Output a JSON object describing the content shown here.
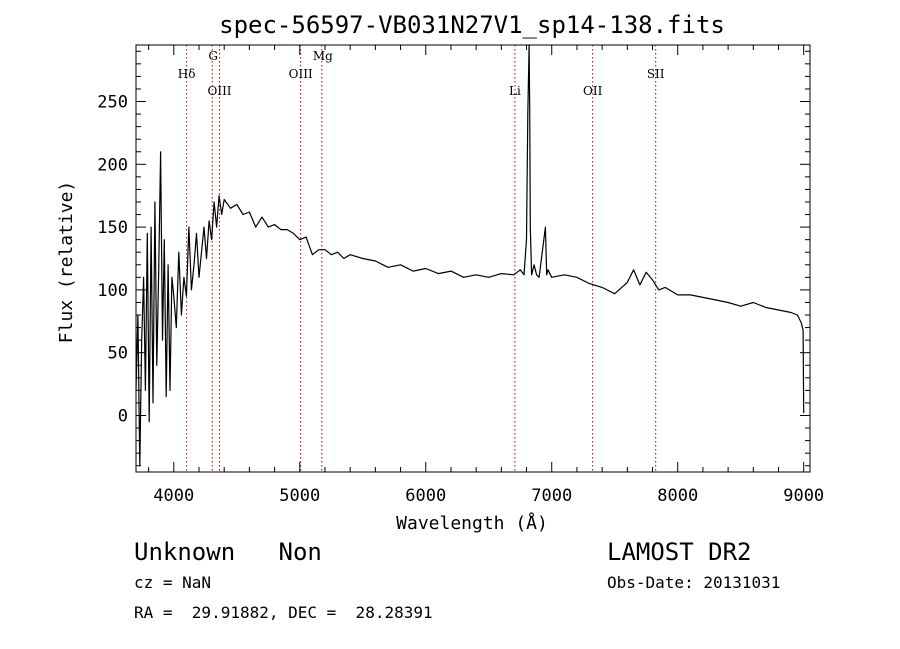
{
  "chart_data": {
    "type": "line",
    "title": "spec-56597-VB031N27V1_sp14-138.fits",
    "xlabel": "Wavelength (Å)",
    "ylabel": "Flux (relative)",
    "xlim": [
      3700,
      9050
    ],
    "ylim": [
      -45,
      295
    ],
    "x_ticks": [
      4000,
      5000,
      6000,
      7000,
      8000,
      9000
    ],
    "y_ticks": [
      0,
      50,
      100,
      150,
      200,
      250
    ],
    "grid": false,
    "line_color": "#000000",
    "marker_color": "#b00000",
    "line_markers": [
      {
        "label": "Hδ",
        "x": 4102,
        "row": 2
      },
      {
        "label": "G",
        "x": 4305,
        "row": 0
      },
      {
        "label": "OIII",
        "x": 4363,
        "row": 3
      },
      {
        "label": "OIII",
        "x": 5007,
        "row": 2
      },
      {
        "label": "Mg",
        "x": 5175,
        "row": 0
      },
      {
        "label": "Li",
        "x": 6708,
        "row": 3
      },
      {
        "label": "OII",
        "x": 7325,
        "row": 3
      },
      {
        "label": "SII",
        "x": 7825,
        "row": 2
      }
    ],
    "spectrum": {
      "x": [
        3700,
        3715,
        3730,
        3745,
        3760,
        3775,
        3790,
        3805,
        3820,
        3835,
        3850,
        3865,
        3880,
        3895,
        3910,
        3925,
        3940,
        3955,
        3970,
        3985,
        4000,
        4020,
        4040,
        4060,
        4080,
        4100,
        4120,
        4140,
        4160,
        4180,
        4200,
        4220,
        4240,
        4260,
        4280,
        4300,
        4320,
        4340,
        4360,
        4380,
        4400,
        4450,
        4500,
        4550,
        4600,
        4650,
        4700,
        4750,
        4800,
        4850,
        4900,
        4950,
        5000,
        5050,
        5100,
        5150,
        5200,
        5250,
        5300,
        5350,
        5400,
        5500,
        5600,
        5700,
        5800,
        5900,
        6000,
        6100,
        6200,
        6300,
        6400,
        6500,
        6600,
        6700,
        6750,
        6780,
        6800,
        6810,
        6820,
        6825,
        6830,
        6840,
        6860,
        6880,
        6900,
        6950,
        6960,
        6970,
        7000,
        7100,
        7200,
        7300,
        7400,
        7500,
        7600,
        7650,
        7700,
        7750,
        7800,
        7850,
        7900,
        8000,
        8100,
        8200,
        8300,
        8400,
        8500,
        8600,
        8700,
        8800,
        8900,
        8950,
        8980,
        8995,
        9000
      ],
      "y": [
        20,
        80,
        -40,
        60,
        110,
        20,
        145,
        -5,
        150,
        10,
        170,
        40,
        115,
        210,
        60,
        140,
        15,
        120,
        20,
        110,
        95,
        70,
        130,
        80,
        110,
        95,
        150,
        100,
        120,
        145,
        110,
        130,
        150,
        125,
        155,
        140,
        170,
        150,
        175,
        160,
        172,
        165,
        168,
        160,
        162,
        150,
        158,
        150,
        152,
        148,
        148,
        145,
        140,
        142,
        128,
        132,
        132,
        128,
        130,
        125,
        128,
        125,
        123,
        118,
        120,
        115,
        117,
        113,
        115,
        110,
        112,
        110,
        113,
        112,
        116,
        112,
        140,
        240,
        300,
        245,
        150,
        112,
        120,
        112,
        110,
        150,
        112,
        116,
        110,
        112,
        110,
        105,
        102,
        97,
        106,
        116,
        104,
        114,
        108,
        100,
        102,
        96,
        96,
        94,
        92,
        90,
        87,
        90,
        86,
        84,
        82,
        80,
        74,
        68,
        2
      ]
    }
  },
  "footer": {
    "object_line": "Unknown   Non",
    "cz_line": "cz = NaN",
    "radec_line": "RA =  29.91882, DEC =  28.28391",
    "survey": "LAMOST DR2",
    "obs_date": "Obs-Date: 20131031"
  }
}
